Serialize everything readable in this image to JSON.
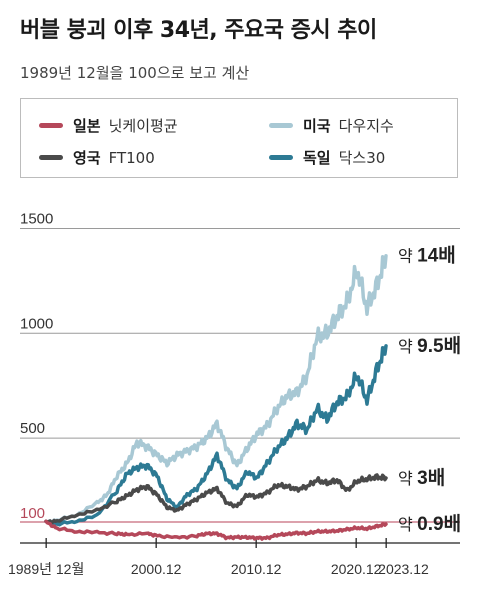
{
  "title": "버블 붕괴 이후 34년, 주요국 증시 추이",
  "subtitle": "1989년 12월을 100으로 보고 계산",
  "legend": [
    {
      "country": "일본",
      "index": "닛케이평균",
      "color": "#b5485a"
    },
    {
      "country": "미국",
      "index": "다우지수",
      "color": "#a8c8d4"
    },
    {
      "country": "영국",
      "index": "FT100",
      "color": "#4a4a4a"
    },
    {
      "country": "독일",
      "index": "닥스30",
      "color": "#2d7a94"
    }
  ],
  "chart_data": {
    "type": "line",
    "title": "버블 붕괴 이후 34년, 주요국 증시 추이",
    "ylim": [
      0,
      1500
    ],
    "y_ticks": [
      "1500",
      "1000",
      "500"
    ],
    "baseline": {
      "value": 100,
      "label": "100",
      "color": "#c8697a"
    },
    "x_tick_labels": [
      {
        "x": 1989.917,
        "label": "1989년 12월"
      },
      {
        "x": 2000.917,
        "label": "2000.12"
      },
      {
        "x": 2010.917,
        "label": "2010.12"
      },
      {
        "x": 2020.917,
        "label": "2020.12"
      },
      {
        "x": 2023.917,
        "label": "2023.12"
      }
    ],
    "xlim": [
      1987.3,
      2031.3
    ],
    "series": [
      {
        "name": "미국",
        "color": "#a8c8d4",
        "end_label": "약 14배",
        "end_value": 1370,
        "points": [
          [
            1989.9,
            100
          ],
          [
            1991,
            108
          ],
          [
            1993,
            135
          ],
          [
            1995,
            190
          ],
          [
            1996,
            230
          ],
          [
            1997,
            320
          ],
          [
            1998,
            380
          ],
          [
            1999,
            480
          ],
          [
            2000,
            460
          ],
          [
            2001,
            420
          ],
          [
            2002,
            380
          ],
          [
            2003,
            420
          ],
          [
            2004,
            440
          ],
          [
            2005,
            460
          ],
          [
            2006,
            500
          ],
          [
            2007,
            570
          ],
          [
            2008,
            450
          ],
          [
            2009,
            370
          ],
          [
            2010,
            450
          ],
          [
            2011,
            520
          ],
          [
            2012,
            560
          ],
          [
            2013,
            640
          ],
          [
            2014,
            700
          ],
          [
            2015,
            720
          ],
          [
            2016,
            800
          ],
          [
            2017,
            980
          ],
          [
            2018,
            1000
          ],
          [
            2019,
            1080
          ],
          [
            2020,
            1150
          ],
          [
            2021,
            1300
          ],
          [
            2022,
            1120
          ],
          [
            2023,
            1230
          ],
          [
            2023.9,
            1370
          ]
        ]
      },
      {
        "name": "독일",
        "color": "#2d7a94",
        "end_label": "약 9.5배",
        "end_value": 940,
        "points": [
          [
            1989.9,
            100
          ],
          [
            1991,
            90
          ],
          [
            1993,
            105
          ],
          [
            1995,
            130
          ],
          [
            1997,
            250
          ],
          [
            1998,
            330
          ],
          [
            1999,
            360
          ],
          [
            2000,
            370
          ],
          [
            2001,
            320
          ],
          [
            2002,
            210
          ],
          [
            2003,
            170
          ],
          [
            2004,
            230
          ],
          [
            2005,
            260
          ],
          [
            2006,
            330
          ],
          [
            2007,
            420
          ],
          [
            2008,
            300
          ],
          [
            2009,
            260
          ],
          [
            2010,
            340
          ],
          [
            2011,
            310
          ],
          [
            2012,
            380
          ],
          [
            2013,
            450
          ],
          [
            2014,
            500
          ],
          [
            2015,
            570
          ],
          [
            2016,
            540
          ],
          [
            2017,
            640
          ],
          [
            2018,
            590
          ],
          [
            2019,
            670
          ],
          [
            2020,
            700
          ],
          [
            2021,
            800
          ],
          [
            2022,
            680
          ],
          [
            2023,
            830
          ],
          [
            2023.9,
            940
          ]
        ]
      },
      {
        "name": "영국",
        "color": "#4a4a4a",
        "end_label": "약 3배",
        "end_value": 310,
        "points": [
          [
            1989.9,
            100
          ],
          [
            1991,
            105
          ],
          [
            1993,
            135
          ],
          [
            1995,
            155
          ],
          [
            1997,
            200
          ],
          [
            1998,
            225
          ],
          [
            1999,
            255
          ],
          [
            2000,
            270
          ],
          [
            2001,
            230
          ],
          [
            2002,
            170
          ],
          [
            2003,
            155
          ],
          [
            2004,
            185
          ],
          [
            2005,
            210
          ],
          [
            2006,
            240
          ],
          [
            2007,
            260
          ],
          [
            2008,
            190
          ],
          [
            2009,
            175
          ],
          [
            2010,
            230
          ],
          [
            2011,
            220
          ],
          [
            2012,
            240
          ],
          [
            2013,
            275
          ],
          [
            2014,
            270
          ],
          [
            2015,
            255
          ],
          [
            2016,
            270
          ],
          [
            2017,
            300
          ],
          [
            2018,
            285
          ],
          [
            2019,
            300
          ],
          [
            2020,
            250
          ],
          [
            2021,
            295
          ],
          [
            2022,
            305
          ],
          [
            2023,
            315
          ],
          [
            2023.9,
            310
          ]
        ]
      },
      {
        "name": "일본",
        "color": "#b5485a",
        "end_label": "약 0.9배",
        "end_value": 90,
        "points": [
          [
            1989.9,
            100
          ],
          [
            1991,
            70
          ],
          [
            1993,
            55
          ],
          [
            1995,
            50
          ],
          [
            1997,
            45
          ],
          [
            1998,
            40
          ],
          [
            2000,
            45
          ],
          [
            2001,
            35
          ],
          [
            2003,
            25
          ],
          [
            2005,
            35
          ],
          [
            2006,
            45
          ],
          [
            2007,
            45
          ],
          [
            2008,
            25
          ],
          [
            2009,
            28
          ],
          [
            2010,
            27
          ],
          [
            2011,
            24
          ],
          [
            2012,
            24
          ],
          [
            2013,
            38
          ],
          [
            2014,
            42
          ],
          [
            2015,
            48
          ],
          [
            2016,
            46
          ],
          [
            2017,
            55
          ],
          [
            2018,
            55
          ],
          [
            2019,
            58
          ],
          [
            2020,
            65
          ],
          [
            2021,
            72
          ],
          [
            2022,
            68
          ],
          [
            2023,
            80
          ],
          [
            2023.9,
            90
          ]
        ]
      }
    ]
  }
}
